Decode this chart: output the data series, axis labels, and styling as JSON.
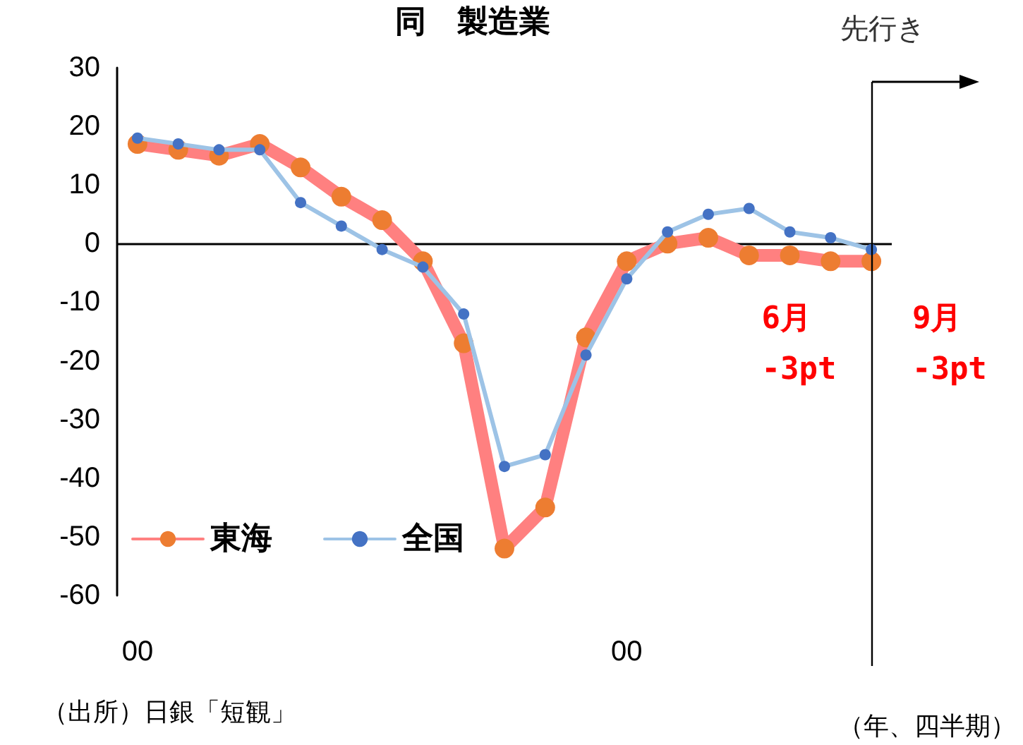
{
  "chart_data": {
    "type": "line",
    "title": "同　製造業",
    "xlabel": "（年、四半期）",
    "categories": [
      "00",
      null,
      null,
      null,
      null,
      null,
      null,
      null,
      null,
      null,
      null,
      null,
      "00",
      null,
      null,
      null,
      null,
      null,
      null
    ],
    "series": [
      {
        "name": "東海",
        "color": "#ff8080",
        "colors": [
          "#ed7d31",
          "#ed7d31",
          "#ed7d31",
          "#ed7d31",
          "#ed7d31",
          "#ed7d31",
          "#ed7d31",
          "#ed7d31",
          "#ed7d31",
          "#ed7d31",
          "#ed7d31",
          "#ed7d31",
          "#ed7d31",
          "#ed7d31",
          "#ed7d31",
          "#ed7d31",
          "#ed7d31",
          "#ed7d31",
          "#ed7d31"
        ],
        "values": [
          17,
          16,
          15,
          17,
          13,
          8,
          4,
          -3,
          -17,
          -52,
          -45,
          -16,
          -3,
          0,
          1,
          -2,
          -2,
          -3,
          -3
        ]
      },
      {
        "name": "全国",
        "color": "#9dc3e6",
        "colors": [
          "#4472c4",
          "#4472c4",
          "#4472c4",
          "#4472c4",
          "#4472c4",
          "#4472c4",
          "#4472c4",
          "#4472c4",
          "#4472c4",
          "#4472c4",
          "#4472c4",
          "#4472c4",
          "#4472c4",
          "#4472c4",
          "#4472c4",
          "#4472c4",
          "#4472c4",
          "#4472c4",
          "#4472c4"
        ],
        "values": [
          18,
          17,
          16,
          16,
          7,
          3,
          -1,
          -4,
          -12,
          -38,
          -36,
          -19,
          -6,
          2,
          5,
          6,
          2,
          1,
          -1
        ]
      }
    ],
    "ylim": [
      -60,
      30
    ],
    "yticks": [
      -60,
      -50,
      -40,
      -30,
      -20,
      -10,
      0,
      10,
      20,
      30
    ],
    "ref_lines": [
      {
        "axis": "y",
        "value": 0,
        "color": "#000000"
      }
    ],
    "annotations": [
      "6月\n-3pt",
      "9月\n-3pt",
      "（出所）日銀「短観」",
      "先行き"
    ],
    "marker": "circle",
    "line_style": "solid",
    "grid": false,
    "legend": "bottom left"
  }
}
